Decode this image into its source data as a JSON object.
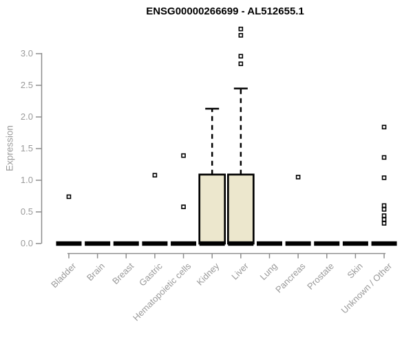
{
  "title": "ENSG00000266699 - AL512655.1",
  "chart_data": {
    "type": "boxplot",
    "title": "ENSG00000266699 - AL512655.1",
    "xlabel": "",
    "ylabel": "Expression",
    "ylim": [
      0,
      3.45
    ],
    "yticks": [
      "0.0",
      "0.5",
      "1.0",
      "1.5",
      "2.0",
      "2.5",
      "3.0"
    ],
    "grid": false,
    "legend": "none",
    "categories": [
      "Bladder",
      "Brain",
      "Breast",
      "Gastric",
      "Hematopoietic cells",
      "Kidney",
      "Liver",
      "Lung",
      "Pancreas",
      "Prostate",
      "Skin",
      "Unknown / Other"
    ],
    "boxes": [
      {
        "category": "Bladder",
        "min": 0,
        "q1": 0,
        "median": 0,
        "q3": 0,
        "whisker_high": 0,
        "outliers": [
          0.74
        ]
      },
      {
        "category": "Brain",
        "min": 0,
        "q1": 0,
        "median": 0,
        "q3": 0,
        "whisker_high": 0,
        "outliers": []
      },
      {
        "category": "Breast",
        "min": 0,
        "q1": 0,
        "median": 0,
        "q3": 0,
        "whisker_high": 0,
        "outliers": []
      },
      {
        "category": "Gastric",
        "min": 0,
        "q1": 0,
        "median": 0,
        "q3": 0,
        "whisker_high": 0,
        "outliers": [
          1.08
        ]
      },
      {
        "category": "Hematopoietic cells",
        "min": 0,
        "q1": 0,
        "median": 0,
        "q3": 0,
        "whisker_high": 0,
        "outliers": [
          1.39,
          0.58
        ]
      },
      {
        "category": "Kidney",
        "min": 0,
        "q1": 0,
        "median": 0,
        "q3": 1.09,
        "whisker_high": 2.13,
        "outliers": []
      },
      {
        "category": "Liver",
        "min": 0,
        "q1": 0,
        "median": 0,
        "q3": 1.09,
        "whisker_high": 2.45,
        "outliers": [
          3.39,
          3.29,
          2.96,
          2.84
        ]
      },
      {
        "category": "Lung",
        "min": 0,
        "q1": 0,
        "median": 0,
        "q3": 0,
        "whisker_high": 0,
        "outliers": []
      },
      {
        "category": "Pancreas",
        "min": 0,
        "q1": 0,
        "median": 0,
        "q3": 0,
        "whisker_high": 0,
        "outliers": [
          1.05
        ]
      },
      {
        "category": "Prostate",
        "min": 0,
        "q1": 0,
        "median": 0,
        "q3": 0,
        "whisker_high": 0,
        "outliers": []
      },
      {
        "category": "Skin",
        "min": 0,
        "q1": 0,
        "median": 0,
        "q3": 0,
        "whisker_high": 0,
        "outliers": []
      },
      {
        "category": "Unknown / Other",
        "min": 0,
        "q1": 0,
        "median": 0,
        "q3": 0,
        "whisker_high": 0,
        "outliers": [
          1.84,
          1.36,
          1.04,
          0.6,
          0.54,
          0.44,
          0.38,
          0.32
        ]
      }
    ],
    "colors": {
      "box_fill": "#ECE7CD",
      "box_border": "#000000",
      "median": "#000000",
      "whisker": "#000000",
      "outlier": "#000000",
      "axis_line": "#8C8C8C",
      "tick_label": "#999999",
      "axis_title": "#999999",
      "title": "#000000",
      "background": "#FFFFFF"
    }
  }
}
